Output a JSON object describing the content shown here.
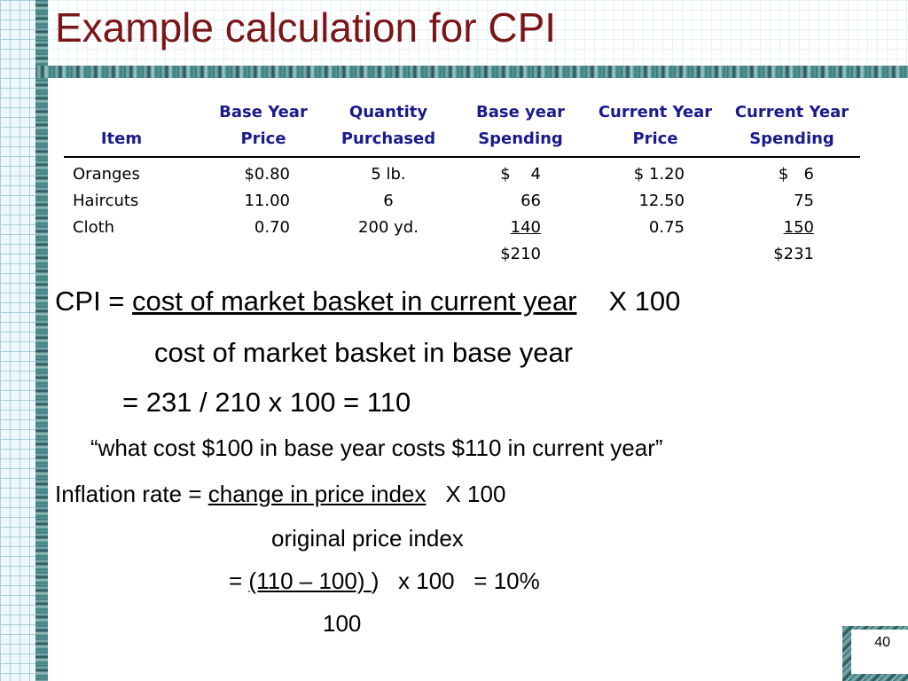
{
  "title": "Example calculation for CPI",
  "table": {
    "headers": [
      [
        "",
        "Item"
      ],
      [
        "Base Year",
        "Price"
      ],
      [
        "Quantity",
        "Purchased"
      ],
      [
        "Base year",
        "Spending"
      ],
      [
        "Current Year",
        "Price"
      ],
      [
        "Current Year",
        "Spending"
      ]
    ],
    "rows": [
      [
        "Oranges",
        "$0.80",
        "5 lb.",
        "$    4",
        "$ 1.20",
        "$   6"
      ],
      [
        "Haircuts",
        "11.00",
        "6",
        "66",
        "12.50",
        "75"
      ],
      [
        "Cloth",
        "0.70",
        "200 yd.",
        "140",
        "0.75",
        "150"
      ]
    ],
    "totals": [
      "$210",
      "$231"
    ]
  },
  "formula": {
    "cpi_prefix": "CPI = ",
    "cpi_numerator": "cost of market basket in current year",
    "cpi_times": "X 100",
    "cpi_denominator": "cost of market basket in base year",
    "cpi_result": "= 231 / 210 x 100 = 110",
    "quote": "“what cost $100 in base year costs $110 in current year”",
    "infl_prefix": "Inflation rate = ",
    "infl_numerator": "change in price index",
    "infl_times": "X 100",
    "infl_denominator": "original price index",
    "infl_eq": "= ",
    "infl_calc_num": "(110 – 100) ",
    "infl_calc_rest": ")   x 100   = 10%",
    "infl_calc_den": "100"
  },
  "page_number": "40"
}
